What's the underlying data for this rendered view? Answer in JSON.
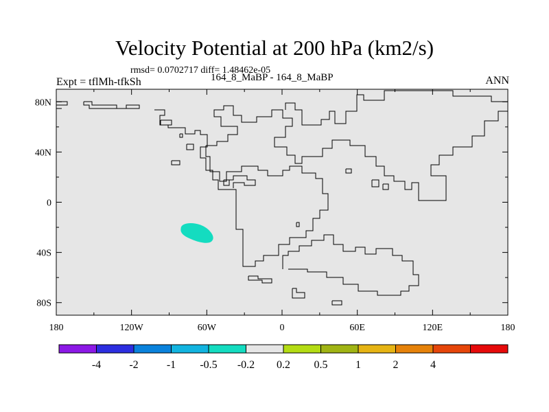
{
  "chart_data": {
    "type": "contour_map",
    "title": "Velocity Potential at 200 hPa (km2/s)",
    "stats_text": "rmsd= 0.0702717 diff= 1.48462e-05",
    "left_label": "Expt = tflMh-tfkSh",
    "center_label": "164_8_MaBP - 164_8_MaBP",
    "right_label": "ANN",
    "x_ticks": [
      "180",
      "120W",
      "60W",
      "0",
      "60E",
      "120E",
      "180"
    ],
    "y_ticks": [
      "80N",
      "40N",
      "0",
      "40S",
      "80S"
    ],
    "xlim": [
      -180,
      180
    ],
    "ylim": [
      -90,
      90
    ],
    "background_level": "-0.2 to 0.2",
    "anomaly_region": {
      "level": "-0.5 to -0.2",
      "center_lon": -68,
      "center_lat": -24
    },
    "colorbar": {
      "colors": [
        "#8c19e6",
        "#2c2ee0",
        "#0a82dc",
        "#12b4e0",
        "#14dcc0",
        "#e6e6e6",
        "#b4dc14",
        "#a0b414",
        "#e6b414",
        "#e6820a",
        "#e6460a",
        "#e60a0a"
      ],
      "labels": [
        "-4",
        "-2",
        "-1",
        "-0.5",
        "-0.2",
        "0.2",
        "0.5",
        "1",
        "2",
        "4"
      ]
    }
  }
}
